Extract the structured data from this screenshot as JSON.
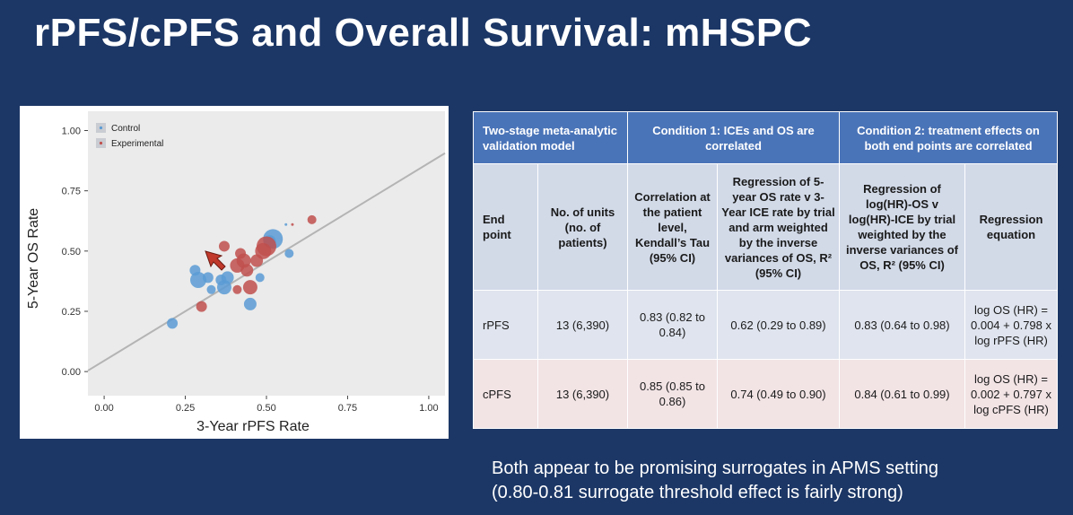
{
  "slide": {
    "title": "rPFS/cPFS and Overall Survival: mHSPC",
    "note_line1": "Both appear to be promising surrogates in APMS setting",
    "note_line2": "(0.80-0.81 surrogate threshold effect is fairly strong)"
  },
  "chart_data": {
    "type": "scatter",
    "xlabel": "3-Year rPFS Rate",
    "ylabel": "5-Year OS Rate",
    "xlim": [
      -0.05,
      1.05
    ],
    "ylim": [
      -0.1,
      1.08
    ],
    "xticks": [
      "0.00",
      "0.25",
      "0.50",
      "0.75",
      "1.00"
    ],
    "yticks": [
      "0.00",
      "0.25",
      "0.50",
      "0.75",
      "1.00"
    ],
    "grid": false,
    "legend_position": "top-left",
    "regression_line": {
      "intercept": 0.045,
      "slope": 0.82
    },
    "series": [
      {
        "name": "Control",
        "color": "#5b9bd5",
        "points": [
          {
            "x": 0.21,
            "y": 0.2,
            "size": 6
          },
          {
            "x": 0.28,
            "y": 0.42,
            "size": 6
          },
          {
            "x": 0.29,
            "y": 0.38,
            "size": 9
          },
          {
            "x": 0.32,
            "y": 0.39,
            "size": 6
          },
          {
            "x": 0.33,
            "y": 0.34,
            "size": 5
          },
          {
            "x": 0.36,
            "y": 0.38,
            "size": 6
          },
          {
            "x": 0.37,
            "y": 0.35,
            "size": 8
          },
          {
            "x": 0.38,
            "y": 0.39,
            "size": 7
          },
          {
            "x": 0.45,
            "y": 0.28,
            "size": 7
          },
          {
            "x": 0.48,
            "y": 0.39,
            "size": 5
          },
          {
            "x": 0.51,
            "y": 0.54,
            "size": 7
          },
          {
            "x": 0.52,
            "y": 0.55,
            "size": 11
          },
          {
            "x": 0.56,
            "y": 0.61,
            "size": 1.5
          },
          {
            "x": 0.57,
            "y": 0.49,
            "size": 5
          }
        ]
      },
      {
        "name": "Experimental",
        "color": "#c0504d",
        "points": [
          {
            "x": 0.3,
            "y": 0.27,
            "size": 6
          },
          {
            "x": 0.37,
            "y": 0.52,
            "size": 6
          },
          {
            "x": 0.41,
            "y": 0.44,
            "size": 8
          },
          {
            "x": 0.41,
            "y": 0.34,
            "size": 5
          },
          {
            "x": 0.42,
            "y": 0.49,
            "size": 6
          },
          {
            "x": 0.43,
            "y": 0.46,
            "size": 8
          },
          {
            "x": 0.44,
            "y": 0.42,
            "size": 7
          },
          {
            "x": 0.45,
            "y": 0.35,
            "size": 8
          },
          {
            "x": 0.47,
            "y": 0.46,
            "size": 7
          },
          {
            "x": 0.49,
            "y": 0.5,
            "size": 9
          },
          {
            "x": 0.5,
            "y": 0.52,
            "size": 11
          },
          {
            "x": 0.58,
            "y": 0.61,
            "size": 1.5
          },
          {
            "x": 0.64,
            "y": 0.63,
            "size": 5
          }
        ]
      }
    ]
  },
  "table": {
    "header": {
      "model": "Two-stage meta-analytic validation model",
      "cond1": "Condition 1: ICEs and OS are correlated",
      "cond2": "Condition 2: treatment effects on both end points are correlated"
    },
    "subheader": {
      "endpoint": "End point",
      "units": "No. of units (no. of patients)",
      "kendall": "Correlation at the patient level, Kendall’s Tau (95% CI)",
      "regress_os": "Regression of 5-year OS rate v 3-Year ICE rate by trial and arm weighted by the inverse variances of OS, R² (95% CI)",
      "regress_hr": "Regression of log(HR)-OS v log(HR)-ICE by trial weighted by the inverse variances of OS, R² (95% CI)",
      "equation": "Regression equation"
    },
    "rows": [
      {
        "endpoint": "rPFS",
        "units": "13 (6,390)",
        "kendall": "0.83 (0.82 to 0.84)",
        "r2_os": "0.62 (0.29 to 0.89)",
        "r2_hr": "0.83 (0.64 to 0.98)",
        "equation": "log OS (HR) = 0.004 + 0.798 x log rPFS (HR)"
      },
      {
        "endpoint": "cPFS",
        "units": "13 (6,390)",
        "kendall": "0.85 (0.85 to 0.86)",
        "r2_os": "0.74 (0.49 to 0.90)",
        "r2_hr": "0.84 (0.61 to 0.99)",
        "equation": "log OS (HR) = 0.002 + 0.797 x log cPFS (HR)"
      }
    ]
  }
}
